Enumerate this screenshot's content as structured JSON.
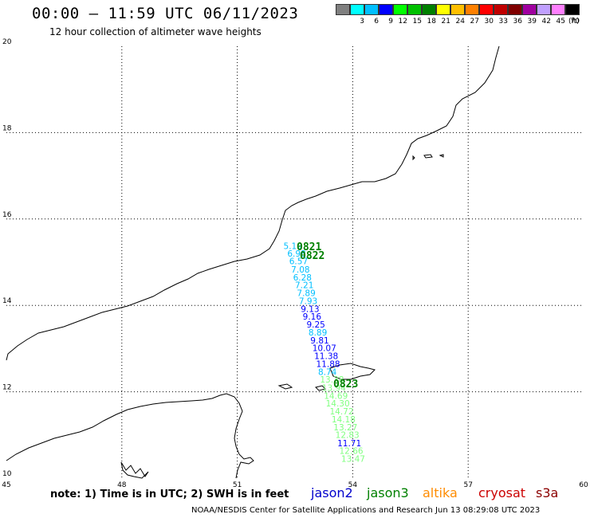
{
  "header": {
    "title": "00:00 – 11:59 UTC 06/11/2023",
    "subtitle": "12 hour collection of altimeter wave heights"
  },
  "legend": {
    "labels": [
      "",
      "3",
      "6",
      "9",
      "12",
      "15",
      "18",
      "21",
      "24",
      "27",
      "30",
      "33",
      "36",
      "39",
      "42",
      "45",
      "70"
    ],
    "colors": [
      "#808080",
      "#00ffff",
      "#00bfff",
      "#0000ff",
      "#00ff00",
      "#00c000",
      "#008000",
      "#ffff00",
      "#ffbf00",
      "#ff8000",
      "#ff0000",
      "#c00000",
      "#800000",
      "#a000a0",
      "#c0a0ff",
      "#ff80ff",
      "#000000"
    ],
    "unit": "(ft)"
  },
  "axes": {
    "x_ticks": [
      "45",
      "48",
      "51",
      "54",
      "57",
      "60"
    ],
    "y_ticks": [
      "10",
      "12",
      "14",
      "16",
      "18",
      "20"
    ],
    "x_range": [
      45,
      60
    ],
    "y_range": [
      10,
      20
    ]
  },
  "track": {
    "times": [
      "0821",
      "0822",
      "0823"
    ],
    "wave_heights": [
      {
        "value": "5.19",
        "color": "#00bfff",
        "lon": 52.2,
        "lat": 15.3
      },
      {
        "value": "6.98",
        "color": "#00bfff",
        "lon": 52.3,
        "lat": 15.13
      },
      {
        "value": "6.57",
        "color": "#00bfff",
        "lon": 52.35,
        "lat": 14.95
      },
      {
        "value": "7.08",
        "color": "#00bfff",
        "lon": 52.4,
        "lat": 14.76
      },
      {
        "value": "6.28",
        "color": "#00bfff",
        "lon": 52.45,
        "lat": 14.58
      },
      {
        "value": "7.21",
        "color": "#00bfff",
        "lon": 52.5,
        "lat": 14.4
      },
      {
        "value": "7.89",
        "color": "#00bfff",
        "lon": 52.55,
        "lat": 14.22
      },
      {
        "value": "7.93",
        "color": "#00bfff",
        "lon": 52.6,
        "lat": 14.03
      },
      {
        "value": "9.13",
        "color": "#0000ff",
        "lon": 52.65,
        "lat": 13.85
      },
      {
        "value": "9.16",
        "color": "#0000ff",
        "lon": 52.7,
        "lat": 13.67
      },
      {
        "value": "9.25",
        "color": "#0000ff",
        "lon": 52.8,
        "lat": 13.49
      },
      {
        "value": "8.89",
        "color": "#00bfff",
        "lon": 52.85,
        "lat": 13.3
      },
      {
        "value": "9.81",
        "color": "#0000ff",
        "lon": 52.9,
        "lat": 13.12
      },
      {
        "value": "10.07",
        "color": "#0000ff",
        "lon": 52.95,
        "lat": 12.94
      },
      {
        "value": "11.38",
        "color": "#0000ff",
        "lon": 53.0,
        "lat": 12.76
      },
      {
        "value": "11.88",
        "color": "#0000ff",
        "lon": 53.05,
        "lat": 12.57
      },
      {
        "value": "8.74",
        "color": "#00bfff",
        "lon": 53.1,
        "lat": 12.39
      },
      {
        "value": "13.38",
        "color": "#80ff80",
        "lon": 53.15,
        "lat": 12.21
      },
      {
        "value": "13.94",
        "color": "#80ff80",
        "lon": 53.2,
        "lat": 12.02
      },
      {
        "value": "14.69",
        "color": "#80ff80",
        "lon": 53.25,
        "lat": 11.84
      },
      {
        "value": "14.30",
        "color": "#80ff80",
        "lon": 53.3,
        "lat": 11.66
      },
      {
        "value": "14.72",
        "color": "#80ff80",
        "lon": 53.4,
        "lat": 11.48
      },
      {
        "value": "14.18",
        "color": "#80ff80",
        "lon": 53.45,
        "lat": 11.29
      },
      {
        "value": "13.27",
        "color": "#80ff80",
        "lon": 53.5,
        "lat": 11.11
      },
      {
        "value": "12.83",
        "color": "#80ff80",
        "lon": 53.55,
        "lat": 10.93
      },
      {
        "value": "11.71",
        "color": "#0000ff",
        "lon": 53.6,
        "lat": 10.74
      },
      {
        "value": "12.66",
        "color": "#80ff80",
        "lon": 53.65,
        "lat": 10.56
      },
      {
        "value": "13.47",
        "color": "#80ff80",
        "lon": 53.7,
        "lat": 10.38
      }
    ]
  },
  "footer": {
    "note": "note:  1) Time is in UTC;  2) SWH is in feet",
    "satellites": [
      {
        "name": "jason2",
        "color": "#0000cc"
      },
      {
        "name": "jason3",
        "color": "#008000"
      },
      {
        "name": "altika",
        "color": "#ff8c00"
      },
      {
        "name": "cryosat",
        "color": "#cc0000"
      },
      {
        "name": "s3a",
        "color": "#8b0000"
      }
    ],
    "credit": "NOAA/NESDIS Center for Satellite Applications and Research    Jun 13 08:29:08 UTC 2023"
  }
}
